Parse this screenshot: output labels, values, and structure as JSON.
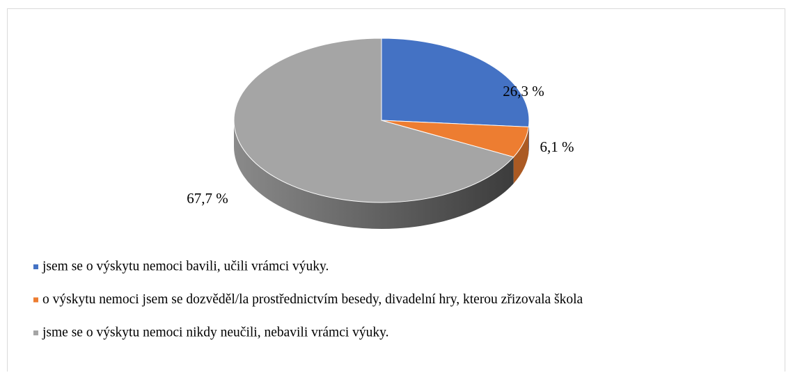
{
  "chart_data": {
    "type": "pie",
    "three_d": true,
    "categories": [
      "jsem se o výskytu nemoci bavili, učili vrámci výuky.",
      "o výskytu nemoci jsem se dozvěděl/la prostřednictvím besedy, divadelní hry, kterou zřizovala škola",
      "jsme se o výskytu nemoci nikdy neučili, nebavili vrámci výuky."
    ],
    "values": [
      26.3,
      6.1,
      67.7
    ],
    "value_labels": [
      "26,3 %",
      "6,1 %",
      "67,7 %"
    ],
    "colors": [
      "#4472c4",
      "#ed7d31",
      "#a5a5a5"
    ],
    "legend": "bottom"
  }
}
